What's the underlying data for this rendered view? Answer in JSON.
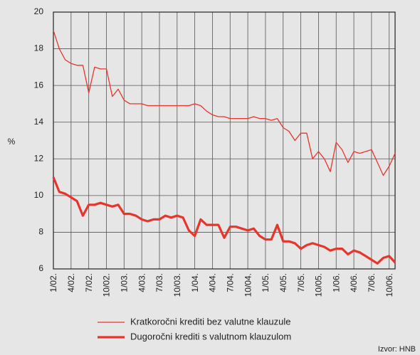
{
  "chart_data": {
    "type": "line",
    "y_label": "%",
    "source": "Izvor: HNB",
    "categories": [
      "1/02.",
      null,
      null,
      "4/02.",
      null,
      null,
      "7/02.",
      null,
      null,
      "10/02.",
      null,
      null,
      "1/03.",
      null,
      null,
      "4/03.",
      null,
      null,
      "7/03.",
      null,
      null,
      "10/03.",
      null,
      null,
      "1/04.",
      null,
      null,
      "4/04.",
      null,
      null,
      "7/04.",
      null,
      null,
      "10/04.",
      null,
      null,
      "1/05.",
      null,
      null,
      "4/05.",
      null,
      null,
      "7/05.",
      null,
      null,
      "10/05.",
      null,
      null,
      "1/06.",
      null,
      null,
      "4/06.",
      null,
      null,
      "7/06.",
      null,
      null,
      "10/06.",
      null
    ],
    "series": [
      {
        "name": "Kratkoročni krediti bez valutne klauzule",
        "color": "#e8352b",
        "width": 1.3,
        "values": [
          19.0,
          18.0,
          17.4,
          17.2,
          17.1,
          17.1,
          15.6,
          17.0,
          16.9,
          16.9,
          15.4,
          15.8,
          15.2,
          15.0,
          15.0,
          15.0,
          14.9,
          14.9,
          14.9,
          14.9,
          14.9,
          14.9,
          14.9,
          14.9,
          15.0,
          14.9,
          14.6,
          14.4,
          14.3,
          14.3,
          14.2,
          14.2,
          14.2,
          14.2,
          14.3,
          14.2,
          14.2,
          14.1,
          14.2,
          13.7,
          13.5,
          13.0,
          13.4,
          13.4,
          12.0,
          12.4,
          12.0,
          11.3,
          12.9,
          12.5,
          11.8,
          12.4,
          12.3,
          12.4,
          12.5,
          11.8,
          11.1,
          11.6,
          12.3
        ]
      },
      {
        "name": "Dugoročni krediti s valutnom klauzulom",
        "color": "#e8352b",
        "width": 3.2,
        "values": [
          11.0,
          10.2,
          10.1,
          9.9,
          9.7,
          8.9,
          9.5,
          9.5,
          9.6,
          9.5,
          9.4,
          9.5,
          9.0,
          9.0,
          8.9,
          8.7,
          8.6,
          8.7,
          8.7,
          8.9,
          8.8,
          8.9,
          8.8,
          8.1,
          7.8,
          8.7,
          8.4,
          8.4,
          8.4,
          7.7,
          8.3,
          8.3,
          8.2,
          8.1,
          8.2,
          7.8,
          7.6,
          7.6,
          8.4,
          7.5,
          7.5,
          7.4,
          7.1,
          7.3,
          7.4,
          7.3,
          7.2,
          7.0,
          7.1,
          7.1,
          6.8,
          7.0,
          6.9,
          6.7,
          6.5,
          6.3,
          6.6,
          6.7,
          6.35
        ]
      }
    ],
    "ylim": [
      6,
      20
    ],
    "yticks": [
      6,
      8,
      10,
      12,
      14,
      16,
      18,
      20
    ],
    "grid": true
  }
}
